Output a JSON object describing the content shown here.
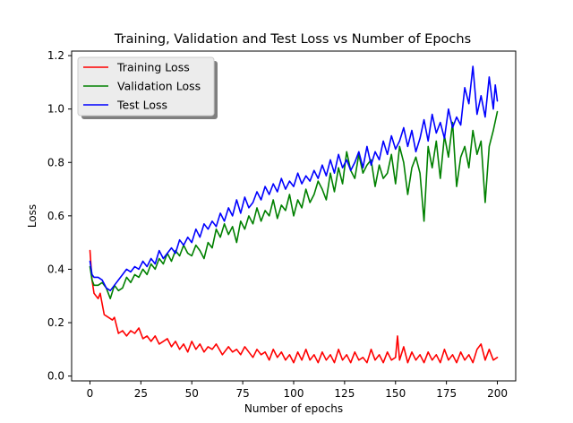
{
  "chart_data": {
    "type": "line",
    "title": "Training, Validation and Test Loss vs Number of Epochs",
    "xlabel": "Number of epochs",
    "ylabel": "Loss",
    "xlim": [
      -9,
      209
    ],
    "ylim": [
      -0.018,
      1.217
    ],
    "xticks": [
      0,
      25,
      50,
      75,
      100,
      125,
      150,
      175,
      200
    ],
    "yticks": [
      0.0,
      0.2,
      0.4,
      0.6,
      0.8,
      1.0,
      1.2
    ],
    "ytick_labels": [
      "0.0",
      "0.2",
      "0.4",
      "0.6",
      "0.8",
      "1.0",
      "1.2"
    ],
    "grid": false,
    "legend_position": "top-left",
    "series": [
      {
        "name": "Training Loss",
        "color": "#ff0000",
        "x": [
          0,
          1,
          2,
          3,
          4,
          5,
          7,
          9,
          11,
          12,
          14,
          16,
          18,
          20,
          22,
          24,
          26,
          28,
          30,
          32,
          34,
          36,
          38,
          40,
          42,
          44,
          46,
          48,
          50,
          52,
          54,
          56,
          58,
          60,
          62,
          65,
          68,
          70,
          72,
          74,
          76,
          78,
          80,
          82,
          84,
          86,
          88,
          90,
          92,
          94,
          96,
          98,
          100,
          102,
          104,
          106,
          108,
          110,
          112,
          114,
          116,
          118,
          120,
          122,
          124,
          126,
          128,
          130,
          132,
          134,
          136,
          138,
          140,
          142,
          144,
          146,
          148,
          150,
          151,
          152,
          154,
          156,
          158,
          160,
          162,
          164,
          166,
          168,
          170,
          172,
          174,
          176,
          178,
          180,
          182,
          184,
          186,
          188,
          190,
          192,
          194,
          196,
          198,
          200
        ],
        "y": [
          0.47,
          0.36,
          0.31,
          0.3,
          0.29,
          0.31,
          0.23,
          0.22,
          0.21,
          0.22,
          0.16,
          0.17,
          0.15,
          0.17,
          0.16,
          0.18,
          0.14,
          0.15,
          0.13,
          0.15,
          0.12,
          0.13,
          0.14,
          0.11,
          0.13,
          0.1,
          0.12,
          0.09,
          0.13,
          0.1,
          0.12,
          0.09,
          0.11,
          0.1,
          0.12,
          0.08,
          0.11,
          0.09,
          0.1,
          0.08,
          0.11,
          0.09,
          0.07,
          0.1,
          0.08,
          0.09,
          0.06,
          0.1,
          0.07,
          0.09,
          0.06,
          0.08,
          0.05,
          0.09,
          0.06,
          0.1,
          0.06,
          0.08,
          0.05,
          0.09,
          0.06,
          0.08,
          0.05,
          0.1,
          0.06,
          0.08,
          0.05,
          0.09,
          0.06,
          0.07,
          0.05,
          0.1,
          0.06,
          0.08,
          0.05,
          0.09,
          0.06,
          0.07,
          0.15,
          0.06,
          0.11,
          0.05,
          0.09,
          0.06,
          0.08,
          0.05,
          0.09,
          0.06,
          0.08,
          0.05,
          0.1,
          0.06,
          0.08,
          0.05,
          0.09,
          0.06,
          0.08,
          0.05,
          0.1,
          0.12,
          0.06,
          0.1,
          0.06,
          0.07
        ]
      },
      {
        "name": "Validation Loss",
        "color": "#008000",
        "x": [
          0,
          1,
          2,
          4,
          6,
          8,
          10,
          12,
          14,
          16,
          18,
          20,
          22,
          24,
          26,
          28,
          30,
          32,
          34,
          36,
          38,
          40,
          42,
          44,
          46,
          48,
          50,
          52,
          54,
          56,
          58,
          60,
          62,
          64,
          66,
          68,
          70,
          72,
          74,
          76,
          78,
          80,
          82,
          84,
          86,
          88,
          90,
          92,
          94,
          96,
          98,
          100,
          102,
          104,
          106,
          108,
          110,
          112,
          114,
          116,
          118,
          120,
          122,
          124,
          126,
          128,
          130,
          132,
          134,
          136,
          138,
          140,
          142,
          144,
          146,
          148,
          150,
          152,
          154,
          156,
          158,
          160,
          162,
          164,
          166,
          168,
          170,
          172,
          174,
          176,
          178,
          180,
          182,
          184,
          186,
          188,
          190,
          192,
          194,
          196,
          198,
          200
        ],
        "y": [
          0.41,
          0.36,
          0.34,
          0.34,
          0.35,
          0.33,
          0.29,
          0.34,
          0.32,
          0.33,
          0.37,
          0.35,
          0.38,
          0.37,
          0.4,
          0.38,
          0.42,
          0.4,
          0.44,
          0.42,
          0.46,
          0.43,
          0.47,
          0.45,
          0.49,
          0.46,
          0.45,
          0.49,
          0.47,
          0.44,
          0.5,
          0.48,
          0.55,
          0.52,
          0.57,
          0.53,
          0.56,
          0.5,
          0.58,
          0.55,
          0.6,
          0.57,
          0.63,
          0.58,
          0.62,
          0.6,
          0.66,
          0.59,
          0.64,
          0.62,
          0.68,
          0.6,
          0.66,
          0.63,
          0.7,
          0.65,
          0.68,
          0.73,
          0.7,
          0.66,
          0.76,
          0.69,
          0.78,
          0.72,
          0.84,
          0.77,
          0.74,
          0.83,
          0.76,
          0.79,
          0.81,
          0.71,
          0.79,
          0.74,
          0.76,
          0.83,
          0.72,
          0.86,
          0.8,
          0.68,
          0.78,
          0.82,
          0.76,
          0.58,
          0.86,
          0.78,
          0.88,
          0.74,
          0.9,
          0.82,
          0.95,
          0.71,
          0.82,
          0.86,
          0.78,
          0.92,
          0.83,
          0.88,
          0.65,
          0.86,
          0.92,
          0.99
        ]
      },
      {
        "name": "Test Loss",
        "color": "#0000ff",
        "x": [
          0,
          1,
          2,
          4,
          6,
          8,
          10,
          12,
          14,
          16,
          18,
          20,
          22,
          24,
          26,
          28,
          30,
          32,
          34,
          36,
          38,
          40,
          42,
          44,
          46,
          48,
          50,
          52,
          54,
          56,
          58,
          60,
          62,
          64,
          66,
          68,
          70,
          72,
          74,
          76,
          78,
          80,
          82,
          84,
          86,
          88,
          90,
          92,
          94,
          96,
          98,
          100,
          102,
          104,
          106,
          108,
          110,
          112,
          114,
          116,
          118,
          120,
          122,
          124,
          126,
          128,
          130,
          132,
          134,
          136,
          138,
          140,
          142,
          144,
          146,
          148,
          150,
          152,
          154,
          156,
          158,
          160,
          162,
          164,
          166,
          168,
          170,
          172,
          174,
          176,
          178,
          180,
          182,
          184,
          186,
          188,
          190,
          192,
          194,
          196,
          198,
          199,
          200
        ],
        "y": [
          0.43,
          0.38,
          0.37,
          0.37,
          0.36,
          0.33,
          0.32,
          0.34,
          0.36,
          0.38,
          0.4,
          0.39,
          0.41,
          0.4,
          0.43,
          0.41,
          0.44,
          0.42,
          0.47,
          0.44,
          0.46,
          0.48,
          0.46,
          0.51,
          0.49,
          0.52,
          0.5,
          0.55,
          0.52,
          0.57,
          0.55,
          0.58,
          0.56,
          0.61,
          0.58,
          0.63,
          0.6,
          0.66,
          0.61,
          0.67,
          0.63,
          0.65,
          0.69,
          0.66,
          0.71,
          0.68,
          0.72,
          0.69,
          0.74,
          0.7,
          0.73,
          0.71,
          0.76,
          0.72,
          0.75,
          0.73,
          0.77,
          0.74,
          0.79,
          0.75,
          0.81,
          0.76,
          0.83,
          0.78,
          0.81,
          0.77,
          0.8,
          0.84,
          0.78,
          0.86,
          0.79,
          0.84,
          0.81,
          0.88,
          0.83,
          0.9,
          0.85,
          0.88,
          0.93,
          0.86,
          0.92,
          0.84,
          0.89,
          0.96,
          0.88,
          0.98,
          0.91,
          0.95,
          0.89,
          1.0,
          0.93,
          0.97,
          0.94,
          1.08,
          1.02,
          1.16,
          0.98,
          1.05,
          0.97,
          1.12,
          1.0,
          1.09,
          1.03
        ]
      }
    ]
  }
}
